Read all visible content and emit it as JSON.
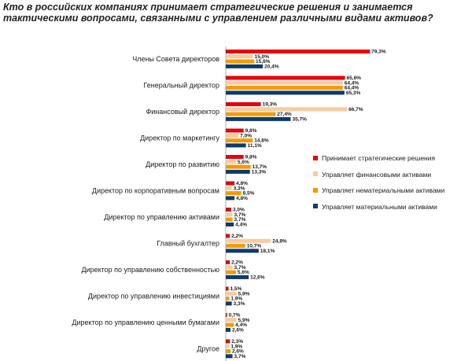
{
  "chart_data": {
    "type": "bar",
    "orientation": "horizontal",
    "title": "Кто в российских компаниях принимает стратегические решения и занимается тактическими вопросами, связанными с управлением различными видами активов?",
    "categories": [
      "Члены Совета директоров",
      "Генеральный директор",
      "Финансовый директор",
      "Директор по маркетингу",
      "Директор по развитию",
      "Директор по корпоративным вопросам",
      "Директор по управлению активами",
      "Главный бухгалтер",
      "Директор по управлению собственностью",
      "Директор по управлению инвестициями",
      "Директор по управлению ценными бумагами",
      "Другое"
    ],
    "series": [
      {
        "name": "Принимает стратегические решения",
        "color": "#e8000b",
        "values": [
          79.3,
          65.6,
          19.3,
          9.8,
          9.8,
          4.8,
          3.0,
          2.2,
          2.2,
          1.5,
          0.7,
          2.3
        ],
        "labels": [
          "79,3%",
          "65,6%",
          "19,3%",
          "9,8%",
          "9,8%",
          "4,8%",
          "3,0%",
          "2,2%",
          "2,2%",
          "1,5%",
          "0,7%",
          "2,3%"
        ]
      },
      {
        "name": "Управляет финансовыми активами",
        "color": "#f9c9a0",
        "values": [
          15.0,
          64.4,
          66.7,
          7.0,
          5.6,
          3.3,
          3.7,
          24.8,
          3.7,
          5.9,
          5.9,
          1.9
        ],
        "labels": [
          "15,0%",
          "64,4%",
          "66,7%",
          "7,0%",
          "5,6%",
          "3,3%",
          "3,7%",
          "24,8%",
          "3,7%",
          "5,9%",
          "5,9%",
          "1,9%"
        ]
      },
      {
        "name": "Управляет нематериальными активами",
        "color": "#f29b00",
        "values": [
          15.6,
          64.4,
          27.4,
          14.8,
          13.7,
          8.5,
          3.7,
          10.7,
          5.6,
          1.9,
          4.4,
          2.6
        ],
        "labels": [
          "15,6%",
          "64,4%",
          "27,4%",
          "14,8%",
          "13,7%",
          "8,5%",
          "3,7%",
          "10,7%",
          "5,6%",
          "1,9%",
          "4,4%",
          "2,6%"
        ]
      },
      {
        "name": "Управляет материальными активами",
        "color": "#0d3a6b",
        "values": [
          20.4,
          65.3,
          35.7,
          11.1,
          13.3,
          4.8,
          4.4,
          18.1,
          12.6,
          3.3,
          2.6,
          3.7
        ],
        "labels": [
          "20,4%",
          "65,3%",
          "35,7%",
          "11,1%",
          "13,3%",
          "4,8%",
          "4,4%",
          "18,1%",
          "12,6%",
          "3,3%",
          "2,6%",
          "3,7%"
        ]
      }
    ],
    "legend_position": "right",
    "grid": false
  }
}
